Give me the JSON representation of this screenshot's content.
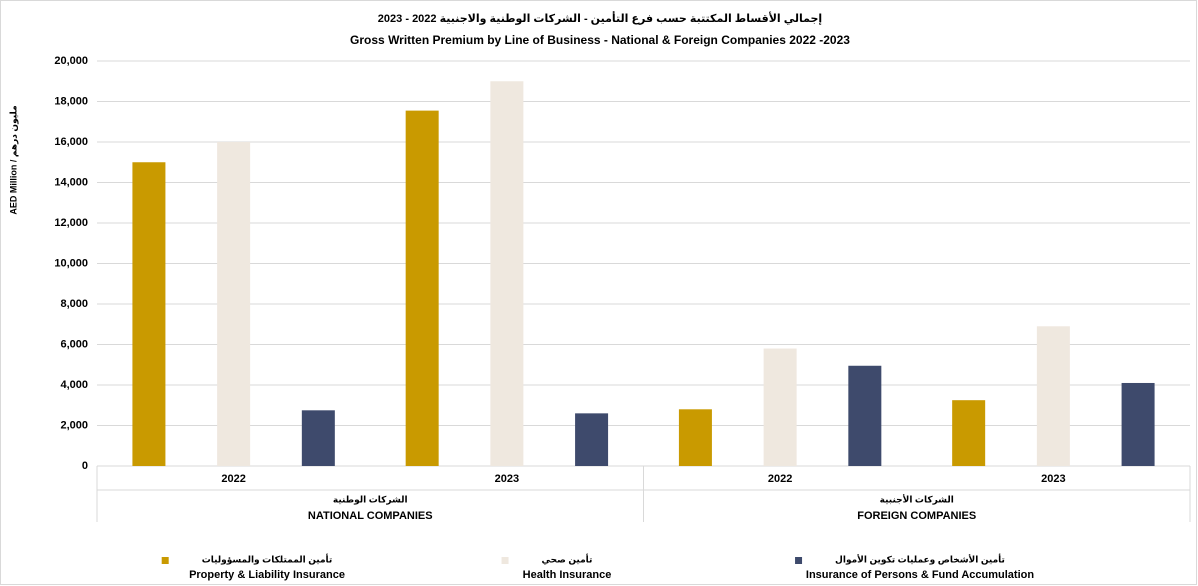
{
  "chart_data": {
    "type": "bar",
    "title": "إجمالي الأقساط المكتتبة حسب فرع التأمين - الشركات الوطنية والاجنبية  2022  - 2023",
    "subtitle": "Gross Written Premium by Line of Business - National & Foreign Companies 2022 -2023",
    "y_label": "AED Million / مليون درهم",
    "categories": [
      "2022",
      "2023",
      "2022",
      "2023"
    ],
    "groups": [
      {
        "label_ar": "الشركات الوطنية",
        "label_en": "NATIONAL COMPANIES",
        "size": 2
      },
      {
        "label_ar": "الشركات الأجنبية",
        "label_en": "FOREIGN COMPANIES",
        "size": 2
      }
    ],
    "series": [
      {
        "name": "Property & Liability Insurance",
        "name_ar": "تأمين الممتلكات والمسؤوليات",
        "color": "#c99a00",
        "values": [
          15000,
          17550,
          2800,
          3250
        ]
      },
      {
        "name": "Health Insurance",
        "name_ar": "تأمين صحي",
        "color": "#efe8df",
        "values": [
          16000,
          19000,
          5800,
          6900
        ]
      },
      {
        "name": "Insurance of Persons & Fund Accumulation",
        "name_ar": "تأمين الأشخاص وعمليات تكوين الأموال",
        "color": "#3e4a6c",
        "values": [
          2750,
          2600,
          4950,
          4100
        ]
      }
    ],
    "ylim": [
      0,
      20000
    ],
    "yticks": [
      0,
      {
        "value": 2000,
        "label": "2,000"
      },
      {
        "value": 4000,
        "label": "4,000"
      },
      {
        "value": 6000,
        "label": "6,000"
      },
      {
        "value": 8000,
        "label": "8,000"
      },
      {
        "value": 10000,
        "label": "10,000"
      },
      {
        "value": 12000,
        "label": "12,000"
      },
      {
        "value": 14000,
        "label": "14,000"
      },
      {
        "value": 16000,
        "label": "16,000"
      },
      {
        "value": 18000,
        "label": "18,000"
      },
      {
        "value": 20000,
        "label": "20,000"
      }
    ],
    "grid": true,
    "legend": "bottom"
  }
}
